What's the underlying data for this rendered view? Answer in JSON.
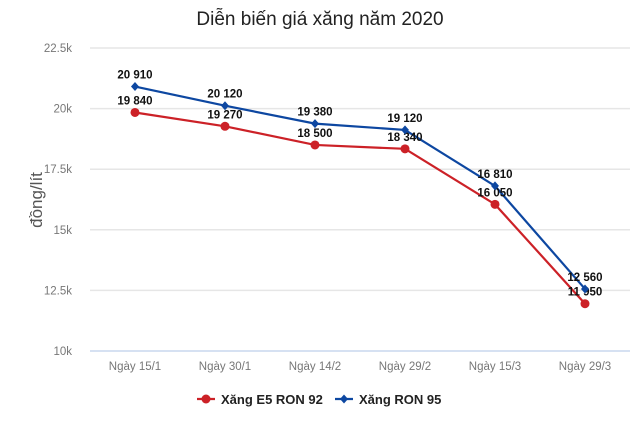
{
  "chart_data": {
    "type": "line",
    "title": "Diễn biến giá xăng năm 2020",
    "ylabel": "đồng/lít",
    "xlabel": "",
    "categories": [
      "Ngày 15/1",
      "Ngày 30/1",
      "Ngày 14/2",
      "Ngày 29/2",
      "Ngày 15/3",
      "Ngày 29/3"
    ],
    "ylim": [
      10000,
      22500
    ],
    "yticks": [
      10000,
      12500,
      15000,
      17500,
      20000,
      22500
    ],
    "ytick_labels": [
      "10k",
      "12.5k",
      "15k",
      "17.5k",
      "20k",
      "22.5k"
    ],
    "grid": true,
    "legend": "bottom",
    "series": [
      {
        "name": "Xăng E5 RON 92",
        "color": "#cc2127",
        "marker": "circle",
        "values": [
          19840,
          19270,
          18500,
          18340,
          16050,
          11950
        ],
        "labels": [
          "19 840",
          "19 270",
          "18 500",
          "18 340",
          "16 050",
          "11 950"
        ]
      },
      {
        "name": "Xăng RON 95",
        "color": "#0d47a1",
        "marker": "diamond",
        "values": [
          20910,
          20120,
          19380,
          19120,
          16810,
          12560
        ],
        "labels": [
          "20 910",
          "20 120",
          "19 380",
          "19 120",
          "16 810",
          "12 560"
        ]
      }
    ]
  }
}
